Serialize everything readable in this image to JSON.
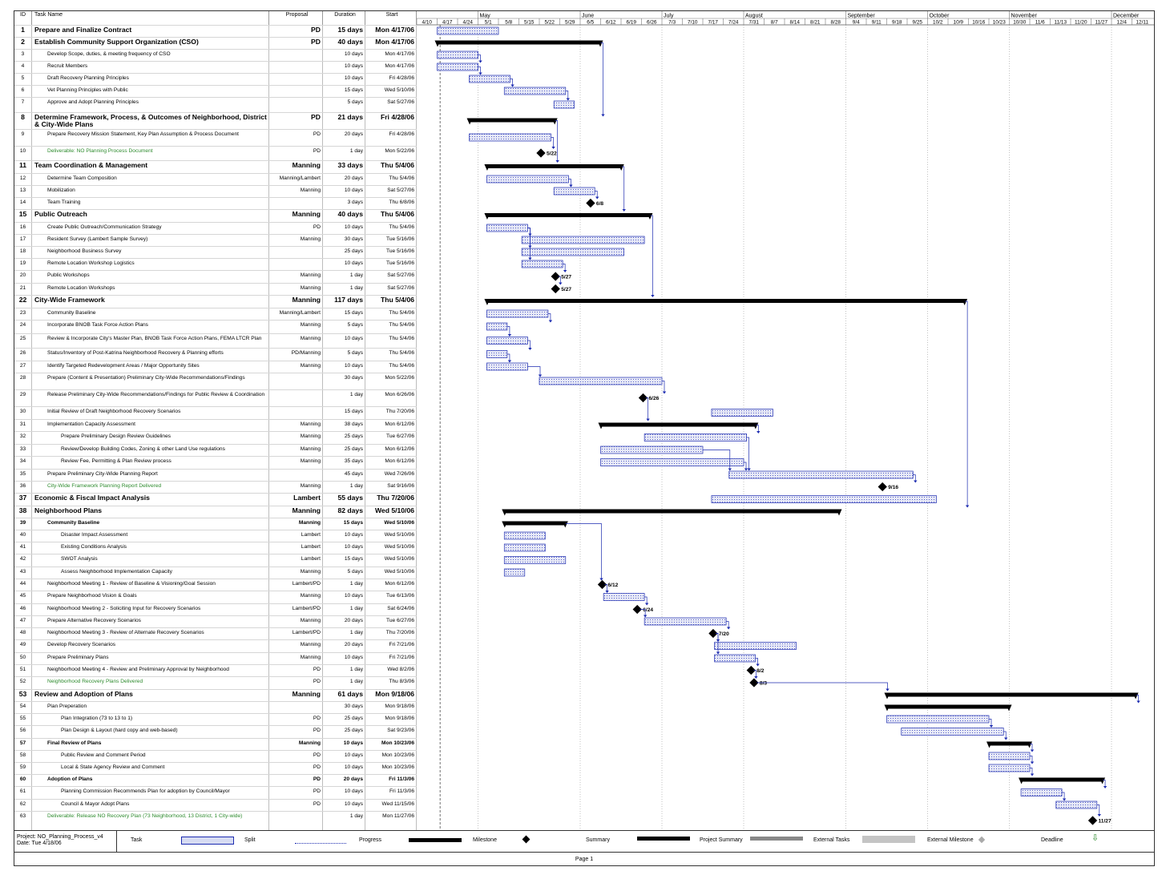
{
  "grid_headers": {
    "id": "ID",
    "name": "Task Name",
    "proposal": "Proposal",
    "duration": "Duration",
    "start": "Start"
  },
  "months": [
    "May",
    "June",
    "July",
    "August",
    "September",
    "October",
    "November",
    "December"
  ],
  "weeks": [
    "4/10",
    "4/17",
    "4/24",
    "5/1",
    "5/8",
    "5/15",
    "5/22",
    "5/29",
    "6/5",
    "6/12",
    "6/19",
    "6/26",
    "7/3",
    "7/10",
    "7/17",
    "7/24",
    "7/31",
    "8/7",
    "8/14",
    "8/21",
    "8/28",
    "9/4",
    "9/11",
    "9/18",
    "9/25",
    "10/2",
    "10/9",
    "10/16",
    "10/23",
    "10/30",
    "11/6",
    "11/13",
    "11/20",
    "11/27",
    "12/4",
    "12/11"
  ],
  "tasks": [
    {
      "id": "1",
      "name": "Prepare and Finalize Contract",
      "proposal": "PD",
      "duration": "15 days",
      "start": "Mon 4/17/06",
      "style": "summary",
      "bar": "task",
      "from": "4/17/06",
      "days": 15
    },
    {
      "id": "2",
      "name": "Establish Community Support Organization (CSO)",
      "proposal": "PD",
      "duration": "40 days",
      "start": "Mon 4/17/06",
      "style": "summary",
      "bar": "summary",
      "from": "4/17/06",
      "days": 40
    },
    {
      "id": "3",
      "name": "Develop Scope, duties, & meeting frequency of CSO",
      "proposal": "",
      "duration": "10 days",
      "start": "Mon 4/17/06",
      "indent": 1,
      "bar": "task",
      "from": "4/17/06",
      "days": 10
    },
    {
      "id": "4",
      "name": "Recruit Members",
      "proposal": "",
      "duration": "10 days",
      "start": "Mon 4/17/06",
      "indent": 1,
      "bar": "task",
      "from": "4/17/06",
      "days": 10
    },
    {
      "id": "5",
      "name": "Draft Recovery Planning Principles",
      "proposal": "",
      "duration": "10 days",
      "start": "Fri 4/28/06",
      "indent": 1,
      "bar": "task",
      "from": "4/28/06",
      "days": 10
    },
    {
      "id": "6",
      "name": "Vet Planning Principles with Public",
      "proposal": "",
      "duration": "15 days",
      "start": "Wed 5/10/06",
      "indent": 1,
      "bar": "task",
      "from": "5/10/06",
      "days": 15
    },
    {
      "id": "7",
      "name": "Approve and Adopt Planning Principles",
      "proposal": "",
      "duration": "5 days",
      "start": "Sat 5/27/06",
      "indent": 1,
      "bar": "task",
      "from": "5/27/06",
      "days": 5
    },
    {
      "id": "8",
      "name": "Determine Framework, Process, & Outcomes of Neighborhood, District & City-Wide Plans",
      "proposal": "PD",
      "duration": "21 days",
      "start": "Fri 4/28/06",
      "style": "summary",
      "wrap": true,
      "bar": "summary",
      "from": "4/28/06",
      "days": 21
    },
    {
      "id": "9",
      "name": "Prepare Recovery Mission Statement, Key Plan Assumption & Process Document",
      "proposal": "PD",
      "duration": "20 days",
      "start": "Fri 4/28/06",
      "indent": 1,
      "bar": "task",
      "from": "4/28/06",
      "days": 20
    },
    {
      "id": "10",
      "name": "Deliverable: NO Planning Process Document",
      "proposal": "PD",
      "duration": "1 day",
      "start": "Mon 5/22/06",
      "indent": 1,
      "deliv": true,
      "bar": "milestone",
      "from": "5/22/06",
      "days": 1,
      "label": "5/22"
    },
    {
      "id": "11",
      "name": "Team Coordination & Management",
      "proposal": "Manning",
      "duration": "33 days",
      "start": "Thu 5/4/06",
      "style": "summary",
      "bar": "summary",
      "from": "5/4/06",
      "days": 33
    },
    {
      "id": "12",
      "name": "Determine Team Composition",
      "proposal": "Manning/Lambert",
      "duration": "20 days",
      "start": "Thu 5/4/06",
      "indent": 1,
      "bar": "task",
      "from": "5/4/06",
      "days": 20
    },
    {
      "id": "13",
      "name": "Mobilization",
      "proposal": "Manning",
      "duration": "10 days",
      "start": "Sat 5/27/06",
      "indent": 1,
      "bar": "task",
      "from": "5/27/06",
      "days": 10
    },
    {
      "id": "14",
      "name": "Team Training",
      "proposal": "",
      "duration": "3 days",
      "start": "Thu 6/8/06",
      "indent": 1,
      "bar": "milestone",
      "from": "6/8/06",
      "days": 3,
      "label": "6/8"
    },
    {
      "id": "15",
      "name": "Public Outreach",
      "proposal": "Manning",
      "duration": "40 days",
      "start": "Thu 5/4/06",
      "style": "summary",
      "bar": "summary",
      "from": "5/4/06",
      "days": 40
    },
    {
      "id": "16",
      "name": "Create Public Outreach/Communication Strategy",
      "proposal": "PD",
      "duration": "10 days",
      "start": "Thu 5/4/06",
      "indent": 1,
      "bar": "task",
      "from": "5/4/06",
      "days": 10
    },
    {
      "id": "17",
      "name": "Resident Survey (Lambert Sample Survey)",
      "proposal": "Manning",
      "duration": "30 days",
      "start": "Tue 5/16/06",
      "indent": 1,
      "bar": "task",
      "from": "5/16/06",
      "days": 30
    },
    {
      "id": "18",
      "name": "Neighborhood Business Survey",
      "proposal": "",
      "duration": "25 days",
      "start": "Tue 5/16/06",
      "indent": 1,
      "bar": "task",
      "from": "5/16/06",
      "days": 25
    },
    {
      "id": "19",
      "name": "Remote Location Workshop Logistics",
      "proposal": "",
      "duration": "10 days",
      "start": "Tue 5/16/06",
      "indent": 1,
      "bar": "task",
      "from": "5/16/06",
      "days": 10
    },
    {
      "id": "20",
      "name": "Public Workshops",
      "proposal": "Manning",
      "duration": "1 day",
      "start": "Sat 5/27/06",
      "indent": 1,
      "bar": "milestone",
      "from": "5/27/06",
      "days": 1,
      "label": "5/27"
    },
    {
      "id": "21",
      "name": "Remote Location Workshops",
      "proposal": "Manning",
      "duration": "1 day",
      "start": "Sat 5/27/06",
      "indent": 1,
      "bar": "milestone",
      "from": "5/27/06",
      "days": 1,
      "label": "5/27"
    },
    {
      "id": "22",
      "name": "City-Wide Framework",
      "proposal": "Manning",
      "duration": "117 days",
      "start": "Thu 5/4/06",
      "style": "summary",
      "bar": "summary",
      "from": "5/4/06",
      "days": 117
    },
    {
      "id": "23",
      "name": "Community Baseline",
      "proposal": "Manning/Lambert",
      "duration": "15 days",
      "start": "Thu 5/4/06",
      "indent": 1,
      "bar": "task",
      "from": "5/4/06",
      "days": 15
    },
    {
      "id": "24",
      "name": "Incorporate BNOB Task Force Action Plans",
      "proposal": "Manning",
      "duration": "5 days",
      "start": "Thu 5/4/06",
      "indent": 1,
      "bar": "task",
      "from": "5/4/06",
      "days": 5
    },
    {
      "id": "25",
      "name": "Review & Incorporate City's Master Plan, BNOB Task Force Action Plans, FEMA LTCR Plan",
      "proposal": "Manning",
      "duration": "10 days",
      "start": "Thu 5/4/06",
      "indent": 1,
      "wrap": true,
      "bar": "task",
      "from": "5/4/06",
      "days": 10
    },
    {
      "id": "26",
      "name": "Status/Inventory of Post-Katrina Neighborhood Recovery & Planning efforts",
      "proposal": "PD/Manning",
      "duration": "5 days",
      "start": "Thu 5/4/06",
      "indent": 1,
      "bar": "task",
      "from": "5/4/06",
      "days": 5
    },
    {
      "id": "27",
      "name": "Identify Targeted Redevelopment Areas / Major Opportunity Sites",
      "proposal": "Manning",
      "duration": "10 days",
      "start": "Thu 5/4/06",
      "indent": 1,
      "bar": "task",
      "from": "5/4/06",
      "days": 10
    },
    {
      "id": "28",
      "name": "Prepare (Content & Presentation) Preliminary City-Wide Recommendations/Findings",
      "proposal": "",
      "duration": "30 days",
      "start": "Mon 5/22/06",
      "indent": 1,
      "bar": "task",
      "from": "5/22/06",
      "days": 30
    },
    {
      "id": "29",
      "name": "Release Preliminary City-Wide Recommendations/Findings for Public Review & Coordination",
      "proposal": "",
      "duration": "1 day",
      "start": "Mon 6/26/06",
      "indent": 1,
      "wrap": true,
      "bar": "milestone",
      "from": "6/26/06",
      "days": 1,
      "label": "6/26"
    },
    {
      "id": "30",
      "name": "Initial Review of Draft Neighborhood Recovery Scenarios",
      "proposal": "",
      "duration": "15 days",
      "start": "Thu 7/20/06",
      "indent": 1,
      "bar": "task",
      "from": "7/20/06",
      "days": 15
    },
    {
      "id": "31",
      "name": "Implementation Capacity Assessment",
      "proposal": "Manning",
      "duration": "38 days",
      "start": "Mon 6/12/06",
      "indent": 1,
      "bar": "summary",
      "from": "6/12/06",
      "days": 38
    },
    {
      "id": "32",
      "name": "Prepare Preliminary Design Review Guidelines",
      "proposal": "Manning",
      "duration": "25 days",
      "start": "Tue 6/27/06",
      "indent": 2,
      "bar": "task",
      "from": "6/27/06",
      "days": 25
    },
    {
      "id": "33",
      "name": "Review/Develop Building Codes, Zoning & other Land Use regulations",
      "proposal": "Manning",
      "duration": "25 days",
      "start": "Mon 6/12/06",
      "indent": 2,
      "bar": "task",
      "from": "6/12/06",
      "days": 25
    },
    {
      "id": "34",
      "name": "Review Fee, Permitting & Plan Review process",
      "proposal": "Manning",
      "duration": "35 days",
      "start": "Mon 6/12/06",
      "indent": 2,
      "bar": "task",
      "from": "6/12/06",
      "days": 35
    },
    {
      "id": "35",
      "name": "Prepare Preliminary City-Wide Planning Report",
      "proposal": "",
      "duration": "45 days",
      "start": "Wed 7/26/06",
      "indent": 1,
      "bar": "task",
      "from": "7/26/06",
      "days": 45
    },
    {
      "id": "36",
      "name": "City-Wide Framework Planning Report Delivered",
      "proposal": "Manning",
      "duration": "1 day",
      "start": "Sat 9/16/06",
      "indent": 1,
      "deliv": true,
      "bar": "milestone",
      "from": "9/16/06",
      "days": 1,
      "label": "9/16"
    },
    {
      "id": "37",
      "name": "Economic & Fiscal Impact Analysis",
      "proposal": "Lambert",
      "duration": "55 days",
      "start": "Thu 7/20/06",
      "style": "summary",
      "bar": "task",
      "from": "7/20/06",
      "days": 55
    },
    {
      "id": "38",
      "name": "Neighborhood Plans",
      "proposal": "Manning",
      "duration": "82 days",
      "start": "Wed 5/10/06",
      "style": "summary",
      "bar": "summary",
      "from": "5/10/06",
      "days": 82
    },
    {
      "id": "39",
      "name": "Community Baseline",
      "proposal": "Manning",
      "duration": "15 days",
      "start": "Wed 5/10/06",
      "indent": 1,
      "semi": true,
      "bar": "summary",
      "from": "5/10/06",
      "days": 15
    },
    {
      "id": "40",
      "name": "Disaster Impact Assessment",
      "proposal": "Lambert",
      "duration": "10 days",
      "start": "Wed 5/10/06",
      "indent": 2,
      "bar": "task",
      "from": "5/10/06",
      "days": 10
    },
    {
      "id": "41",
      "name": "Existing Conditions Analysis",
      "proposal": "Lambert",
      "duration": "10 days",
      "start": "Wed 5/10/06",
      "indent": 2,
      "bar": "task",
      "from": "5/10/06",
      "days": 10
    },
    {
      "id": "42",
      "name": "SWOT Analysis",
      "proposal": "Lambert",
      "duration": "15 days",
      "start": "Wed 5/10/06",
      "indent": 2,
      "bar": "task",
      "from": "5/10/06",
      "days": 15
    },
    {
      "id": "43",
      "name": "Assess Neighborhood Implementation Capacity",
      "proposal": "Manning",
      "duration": "5 days",
      "start": "Wed 5/10/06",
      "indent": 2,
      "bar": "task",
      "from": "5/10/06",
      "days": 5
    },
    {
      "id": "44",
      "name": "Neighborhood Meeting 1 - Review of Baseline & Visioning/Goal Session",
      "proposal": "Lambert/PD",
      "duration": "1 day",
      "start": "Mon 6/12/06",
      "indent": 1,
      "bar": "milestone",
      "from": "6/12/06",
      "days": 1,
      "label": "6/12"
    },
    {
      "id": "45",
      "name": "Prepare Neighborhood Vision & Goals",
      "proposal": "Manning",
      "duration": "10 days",
      "start": "Tue 6/13/06",
      "indent": 1,
      "bar": "task",
      "from": "6/13/06",
      "days": 10
    },
    {
      "id": "46",
      "name": "Neighborhood Meeting 2 - Soliciting Input for Recovery Scenarios",
      "proposal": "Lambert/PD",
      "duration": "1 day",
      "start": "Sat 6/24/06",
      "indent": 1,
      "bar": "milestone",
      "from": "6/24/06",
      "days": 1,
      "label": "6/24"
    },
    {
      "id": "47",
      "name": "Prepare Alternative Recovery Scenarios",
      "proposal": "Manning",
      "duration": "20 days",
      "start": "Tue 6/27/06",
      "indent": 1,
      "bar": "task",
      "from": "6/27/06",
      "days": 20
    },
    {
      "id": "48",
      "name": "Neighborhood Meeting 3 - Review of Alternate Recovery Scenarios",
      "proposal": "Lambert/PD",
      "duration": "1 day",
      "start": "Thu 7/20/06",
      "indent": 1,
      "bar": "milestone",
      "from": "7/20/06",
      "days": 1,
      "label": "7/20"
    },
    {
      "id": "49",
      "name": "Develop Recovery Scenarios",
      "proposal": "Manning",
      "duration": "20 days",
      "start": "Fri 7/21/06",
      "indent": 1,
      "bar": "task",
      "from": "7/21/06",
      "days": 20
    },
    {
      "id": "50",
      "name": "Prepare Preliminary Plans",
      "proposal": "Manning",
      "duration": "10 days",
      "start": "Fri 7/21/06",
      "indent": 1,
      "bar": "task",
      "from": "7/21/06",
      "days": 10
    },
    {
      "id": "51",
      "name": "Neighborhood Meeting 4 - Review and Preliminary Approval by Neighborhood",
      "proposal": "PD",
      "duration": "1 day",
      "start": "Wed 8/2/06",
      "indent": 1,
      "bar": "milestone",
      "from": "8/2/06",
      "days": 1,
      "label": "8/2"
    },
    {
      "id": "52",
      "name": "Neighborhood Recovery Plans Delivered",
      "proposal": "PD",
      "duration": "1 day",
      "start": "Thu 8/3/06",
      "indent": 1,
      "deliv": true,
      "bar": "milestone",
      "from": "8/3/06",
      "days": 1,
      "label": "8/3"
    },
    {
      "id": "53",
      "name": "Review and Adoption of Plans",
      "proposal": "Manning",
      "duration": "61 days",
      "start": "Mon 9/18/06",
      "style": "summary",
      "bar": "summary",
      "from": "9/18/06",
      "days": 61
    },
    {
      "id": "54",
      "name": "Plan Preperation",
      "proposal": "",
      "duration": "30 days",
      "start": "Mon 9/18/06",
      "indent": 1,
      "bar": "summary",
      "from": "9/18/06",
      "days": 30
    },
    {
      "id": "55",
      "name": "Plan Integration (73 to 13 to 1)",
      "proposal": "PD",
      "duration": "25 days",
      "start": "Mon 9/18/06",
      "indent": 2,
      "bar": "task",
      "from": "9/18/06",
      "days": 25
    },
    {
      "id": "56",
      "name": "Plan Design & Layout (hard copy and web-based)",
      "proposal": "PD",
      "duration": "25 days",
      "start": "Sat 9/23/06",
      "indent": 2,
      "bar": "task",
      "from": "9/23/06",
      "days": 25
    },
    {
      "id": "57",
      "name": "Final Review of Plans",
      "proposal": "Manning",
      "duration": "10 days",
      "start": "Mon 10/23/06",
      "indent": 1,
      "semi": true,
      "bar": "summary",
      "from": "10/23/06",
      "days": 10
    },
    {
      "id": "58",
      "name": "Public Review and Comment Period",
      "proposal": "PD",
      "duration": "10 days",
      "start": "Mon 10/23/06",
      "indent": 2,
      "bar": "task",
      "from": "10/23/06",
      "days": 10
    },
    {
      "id": "59",
      "name": "Local & State Agency Review and Comment",
      "proposal": "PD",
      "duration": "10 days",
      "start": "Mon 10/23/06",
      "indent": 2,
      "bar": "task",
      "from": "10/23/06",
      "days": 10
    },
    {
      "id": "60",
      "name": "Adoption of Plans",
      "proposal": "PD",
      "duration": "20 days",
      "start": "Fri 11/3/06",
      "indent": 1,
      "semi": true,
      "bar": "summary",
      "from": "11/3/06",
      "days": 20
    },
    {
      "id": "61",
      "name": "Planning Commission Recommends Plan for adoption by Council/Mayor",
      "proposal": "PD",
      "duration": "10 days",
      "start": "Fri 11/3/06",
      "indent": 2,
      "bar": "task",
      "from": "11/3/06",
      "days": 10
    },
    {
      "id": "62",
      "name": "Council & Mayor Adopt Plans",
      "proposal": "PD",
      "duration": "10 days",
      "start": "Wed 11/15/06",
      "indent": 2,
      "bar": "task",
      "from": "11/15/06",
      "days": 10
    },
    {
      "id": "63",
      "name": "Deliverable: Release NO Recovery Plan (73 Neighborhood, 13 District, 1 City-wide)",
      "proposal": "",
      "duration": "1 day",
      "start": "Mon 11/27/06",
      "indent": 1,
      "deliv": true,
      "bar": "milestone",
      "from": "11/27/06",
      "days": 1,
      "label": "11/27"
    }
  ],
  "legend": {
    "project": "Project: NO_Planning_Process_v4",
    "date": "Date: Tue 4/18/06",
    "items": [
      "Task",
      "Split",
      "Progress",
      "Milestone",
      "Summary",
      "Project Summary",
      "External Tasks",
      "External Milestone",
      "Deadline"
    ]
  },
  "footer": "Page 1",
  "colors": {
    "task_fill": "#c8cde8",
    "task_stroke": "#1c2bb0",
    "summary": "#000000",
    "link": "#1c2bb0",
    "deliverable_text": "#2e8b2e"
  }
}
